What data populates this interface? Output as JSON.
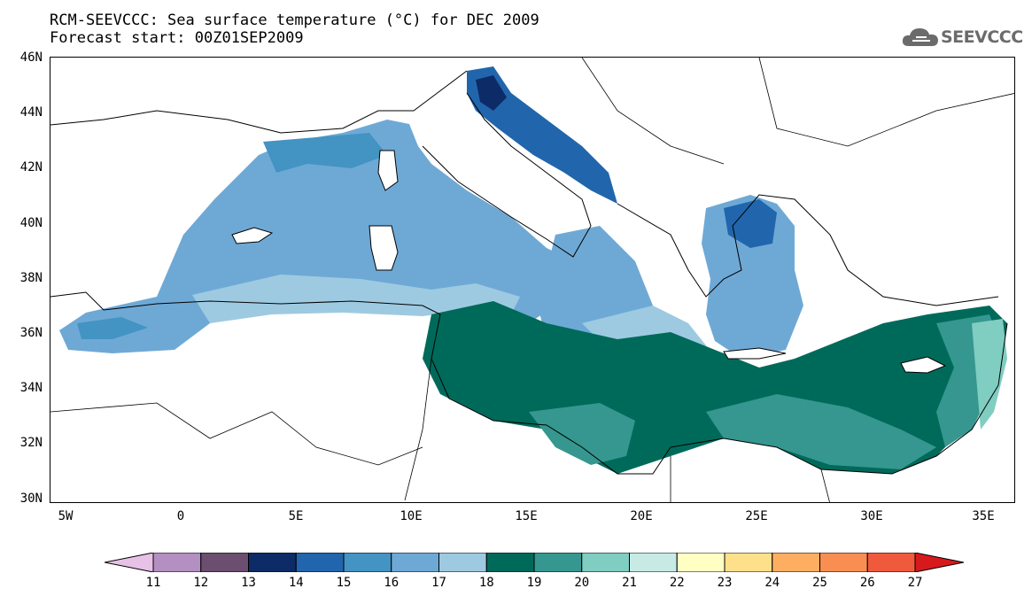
{
  "header": {
    "title_line1": "RCM-SEEVCCC: Sea surface temperature (°C) for DEC 2009",
    "title_line2": "Forecast start: 00Z01SEP2009",
    "logo_text": "SEEVCCC"
  },
  "map": {
    "lat_labels": [
      "46N",
      "44N",
      "42N",
      "40N",
      "38N",
      "36N",
      "34N",
      "32N",
      "30N"
    ],
    "lon_labels": [
      "5W",
      "0",
      "5E",
      "10E",
      "15E",
      "20E",
      "25E",
      "30E",
      "35E"
    ]
  },
  "colorbar": {
    "labels": [
      "11",
      "12",
      "13",
      "14",
      "15",
      "16",
      "17",
      "18",
      "19",
      "20",
      "21",
      "22",
      "23",
      "24",
      "25",
      "26",
      "27"
    ],
    "colors": {
      "below": "#e8c1e6",
      "bins": [
        "#b38fc2",
        "#6b4e70",
        "#0d2b66",
        "#2166ac",
        "#4393c3",
        "#6ea9d6",
        "#9ecae1",
        "#006a5a",
        "#35978f",
        "#80cdc1",
        "#c7eae5",
        "#ffffc4",
        "#fee08b",
        "#fdae61",
        "#f98e52",
        "#f05a3c"
      ],
      "above": "#d7191c"
    }
  }
}
